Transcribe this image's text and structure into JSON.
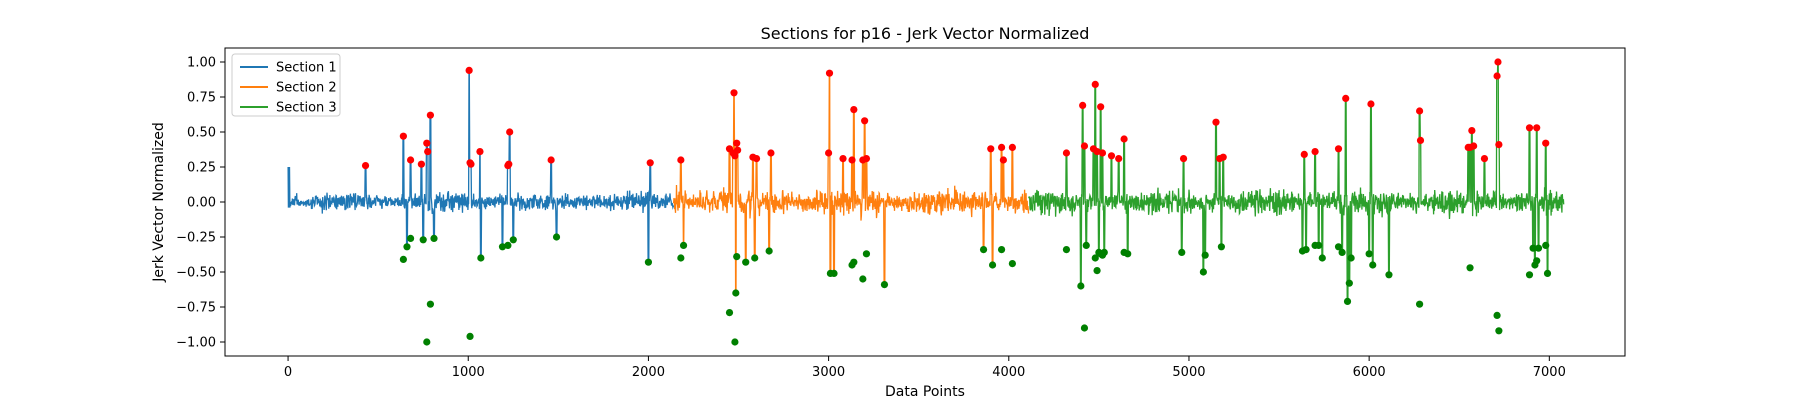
{
  "chart_data": {
    "type": "line",
    "title": "Sections for p16 - Jerk Vector Normalized",
    "xlabel": "Data Points",
    "ylabel": "Jerk Vector Normalized",
    "xlim": [
      -350,
      7420
    ],
    "ylim": [
      -1.1,
      1.1
    ],
    "x_ticks": [
      0,
      1000,
      2000,
      3000,
      4000,
      5000,
      6000,
      7000
    ],
    "x_tick_labels": [
      "0",
      "1000",
      "2000",
      "3000",
      "4000",
      "5000",
      "6000",
      "7000"
    ],
    "y_ticks": [
      -1.0,
      -0.75,
      -0.5,
      -0.25,
      0.0,
      0.25,
      0.5,
      0.75,
      1.0
    ],
    "y_tick_labels": [
      "−1.00",
      "−0.75",
      "−0.50",
      "−0.25",
      "0.00",
      "0.25",
      "0.50",
      "0.75",
      "1.00"
    ],
    "grid": false,
    "legend_position": "top-left",
    "series": [
      {
        "name": "Section 1",
        "color": "#1f77b4",
        "x_range": [
          0,
          2140
        ],
        "noise_amplitude": 0.09
      },
      {
        "name": "Section 2",
        "color": "#ff7f0e",
        "x_range": [
          2140,
          4110
        ],
        "noise_amplitude": 0.13
      },
      {
        "name": "Section 3",
        "color": "#2ca02c",
        "x_range": [
          4110,
          7080
        ],
        "noise_amplitude": 0.12
      }
    ],
    "peaks_color": "#ff0000",
    "troughs_color": "#008000",
    "peaks": [
      [
        430,
        0.26
      ],
      [
        640,
        0.47
      ],
      [
        680,
        0.3
      ],
      [
        740,
        0.27
      ],
      [
        770,
        0.42
      ],
      [
        775,
        0.36
      ],
      [
        790,
        0.62
      ],
      [
        1005,
        0.94
      ],
      [
        1010,
        0.28
      ],
      [
        1015,
        0.27
      ],
      [
        1065,
        0.36
      ],
      [
        1220,
        0.26
      ],
      [
        1225,
        0.27
      ],
      [
        1230,
        0.5
      ],
      [
        1460,
        0.3
      ],
      [
        2010,
        0.28
      ],
      [
        2180,
        0.3
      ],
      [
        2450,
        0.38
      ],
      [
        2470,
        0.35
      ],
      [
        2475,
        0.78
      ],
      [
        2480,
        0.33
      ],
      [
        2490,
        0.42
      ],
      [
        2495,
        0.37
      ],
      [
        2580,
        0.32
      ],
      [
        2600,
        0.31
      ],
      [
        2680,
        0.35
      ],
      [
        3000,
        0.35
      ],
      [
        3005,
        0.92
      ],
      [
        3080,
        0.31
      ],
      [
        3130,
        0.3
      ],
      [
        3140,
        0.66
      ],
      [
        3190,
        0.3
      ],
      [
        3200,
        0.58
      ],
      [
        3210,
        0.31
      ],
      [
        3900,
        0.38
      ],
      [
        3960,
        0.39
      ],
      [
        3970,
        0.3
      ],
      [
        4020,
        0.39
      ],
      [
        4320,
        0.35
      ],
      [
        4410,
        0.69
      ],
      [
        4420,
        0.4
      ],
      [
        4470,
        0.38
      ],
      [
        4480,
        0.84
      ],
      [
        4490,
        0.36
      ],
      [
        4510,
        0.68
      ],
      [
        4520,
        0.35
      ],
      [
        4570,
        0.33
      ],
      [
        4610,
        0.31
      ],
      [
        4640,
        0.45
      ],
      [
        4970,
        0.31
      ],
      [
        5150,
        0.57
      ],
      [
        5170,
        0.31
      ],
      [
        5190,
        0.32
      ],
      [
        5640,
        0.34
      ],
      [
        5700,
        0.36
      ],
      [
        5830,
        0.38
      ],
      [
        5870,
        0.74
      ],
      [
        6010,
        0.7
      ],
      [
        6280,
        0.65
      ],
      [
        6285,
        0.44
      ],
      [
        6550,
        0.39
      ],
      [
        6560,
        0.39
      ],
      [
        6570,
        0.51
      ],
      [
        6580,
        0.4
      ],
      [
        6640,
        0.31
      ],
      [
        6710,
        0.9
      ],
      [
        6715,
        1.0
      ],
      [
        6720,
        0.41
      ],
      [
        6890,
        0.53
      ],
      [
        6930,
        0.53
      ],
      [
        6980,
        0.42
      ]
    ],
    "troughs": [
      [
        640,
        -0.41
      ],
      [
        660,
        -0.32
      ],
      [
        680,
        -0.26
      ],
      [
        750,
        -0.27
      ],
      [
        770,
        -1.0
      ],
      [
        790,
        -0.73
      ],
      [
        810,
        -0.26
      ],
      [
        1010,
        -0.96
      ],
      [
        1070,
        -0.4
      ],
      [
        1190,
        -0.32
      ],
      [
        1220,
        -0.31
      ],
      [
        1250,
        -0.27
      ],
      [
        1490,
        -0.25
      ],
      [
        2000,
        -0.43
      ],
      [
        2180,
        -0.4
      ],
      [
        2195,
        -0.31
      ],
      [
        2450,
        -0.79
      ],
      [
        2480,
        -1.0
      ],
      [
        2485,
        -0.65
      ],
      [
        2490,
        -0.39
      ],
      [
        2540,
        -0.43
      ],
      [
        2590,
        -0.4
      ],
      [
        2670,
        -0.35
      ],
      [
        3010,
        -0.51
      ],
      [
        3030,
        -0.51
      ],
      [
        3130,
        -0.45
      ],
      [
        3140,
        -0.43
      ],
      [
        3190,
        -0.55
      ],
      [
        3210,
        -0.37
      ],
      [
        3310,
        -0.59
      ],
      [
        3860,
        -0.34
      ],
      [
        3910,
        -0.45
      ],
      [
        3960,
        -0.34
      ],
      [
        4020,
        -0.44
      ],
      [
        4320,
        -0.34
      ],
      [
        4400,
        -0.6
      ],
      [
        4420,
        -0.9
      ],
      [
        4430,
        -0.31
      ],
      [
        4480,
        -0.4
      ],
      [
        4490,
        -0.49
      ],
      [
        4500,
        -0.36
      ],
      [
        4510,
        -0.37
      ],
      [
        4520,
        -0.38
      ],
      [
        4530,
        -0.36
      ],
      [
        4640,
        -0.36
      ],
      [
        4660,
        -0.37
      ],
      [
        4960,
        -0.36
      ],
      [
        5080,
        -0.5
      ],
      [
        5090,
        -0.38
      ],
      [
        5180,
        -0.32
      ],
      [
        5630,
        -0.35
      ],
      [
        5650,
        -0.34
      ],
      [
        5700,
        -0.31
      ],
      [
        5720,
        -0.31
      ],
      [
        5740,
        -0.4
      ],
      [
        5830,
        -0.32
      ],
      [
        5850,
        -0.36
      ],
      [
        5880,
        -0.71
      ],
      [
        5890,
        -0.58
      ],
      [
        5900,
        -0.4
      ],
      [
        6000,
        -0.37
      ],
      [
        6020,
        -0.45
      ],
      [
        6110,
        -0.52
      ],
      [
        6280,
        -0.73
      ],
      [
        6560,
        -0.47
      ],
      [
        6710,
        -0.81
      ],
      [
        6720,
        -0.92
      ],
      [
        6890,
        -0.52
      ],
      [
        6910,
        -0.33
      ],
      [
        6920,
        -0.45
      ],
      [
        6930,
        -0.42
      ],
      [
        6940,
        -0.33
      ],
      [
        6980,
        -0.31
      ],
      [
        6990,
        -0.51
      ]
    ]
  }
}
